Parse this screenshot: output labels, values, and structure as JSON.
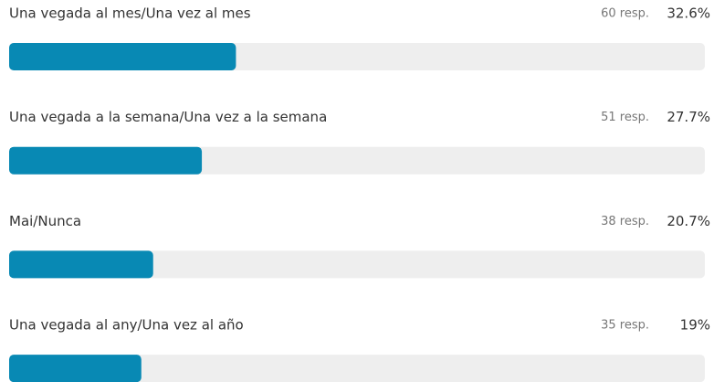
{
  "chart_data": {
    "type": "bar",
    "categories": [
      "Una vegada al mes/Una vez al mes",
      "Una vegada a la semana/Una vez a la semana",
      "Mai/Nunca",
      "Una vegada al any/Una vez al año"
    ],
    "count_labels": [
      "60 resp.",
      "51 resp.",
      "38 resp.",
      "35 resp."
    ],
    "values": [
      32.6,
      27.7,
      20.7,
      19
    ],
    "value_labels": [
      "32.6%",
      "27.7%",
      "20.7%",
      "19%"
    ],
    "color": "#0889b4",
    "track_color": "#eeeeee",
    "xlim": [
      0,
      100
    ]
  }
}
